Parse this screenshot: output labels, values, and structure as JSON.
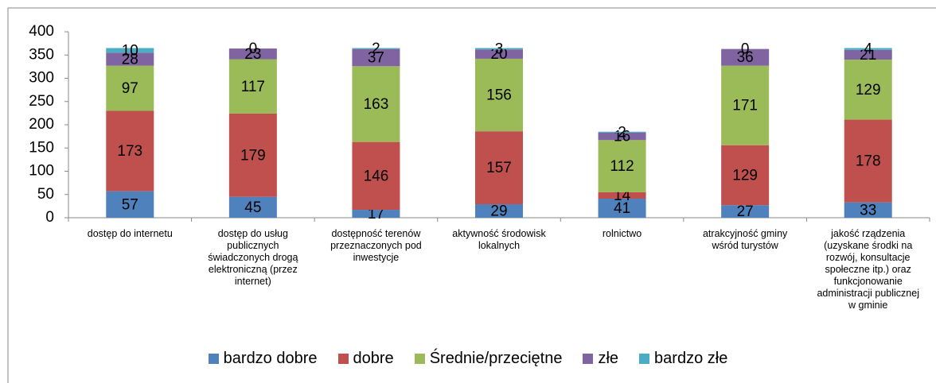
{
  "chart_data": {
    "type": "stacked_bar",
    "categories": [
      "dostęp do internetu",
      "dostęp do usług publicznych świadczonych drogą elektroniczną (przez internet)",
      "dostępność terenów przeznaczonych pod inwestycje",
      "aktywność środowisk lokalnych",
      "rolnictwo",
      "atrakcyjność gminy wśród turystów",
      "jakość rządzenia (uzyskane środki na rozwój, konsultacje społeczne itp.) oraz funkcjonowanie administracji publicznej w gminie"
    ],
    "series": [
      {
        "name": "bardzo dobre",
        "color": "#4f81bd",
        "values": [
          57,
          45,
          17,
          29,
          41,
          27,
          33
        ]
      },
      {
        "name": "dobre",
        "color": "#c0504d",
        "values": [
          173,
          179,
          146,
          157,
          14,
          129,
          178
        ]
      },
      {
        "name": "Średnie/przeciętne",
        "color": "#9bbb59",
        "values": [
          97,
          117,
          163,
          156,
          112,
          171,
          129
        ]
      },
      {
        "name": "złe",
        "color": "#8064a2",
        "values": [
          28,
          23,
          37,
          20,
          16,
          36,
          21
        ]
      },
      {
        "name": "bardzo złe",
        "color": "#4bacc6",
        "values": [
          10,
          0,
          2,
          3,
          2,
          0,
          4
        ]
      }
    ],
    "ylim": [
      0,
      400
    ],
    "yticks": [
      0,
      50,
      100,
      150,
      200,
      250,
      300,
      350,
      400
    ],
    "grid": false
  }
}
